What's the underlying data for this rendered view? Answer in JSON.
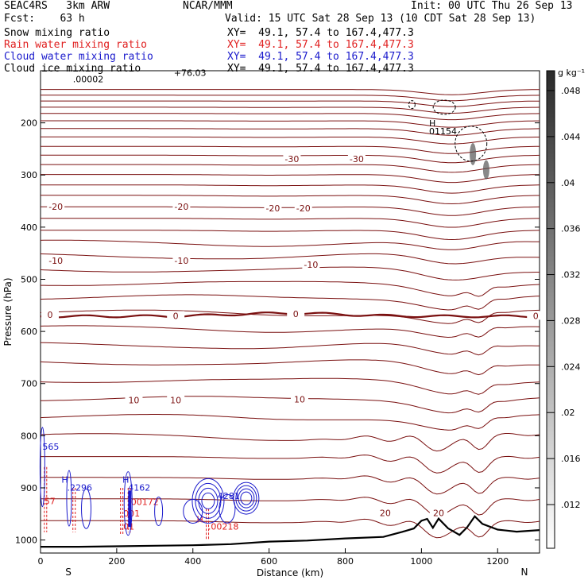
{
  "header": {
    "model": "SEAC4RS   3km ARW",
    "org": "NCAR/MMM",
    "init": "Init: 00 UTC Thu 26 Sep 13",
    "fcst": "Fcst:    63 h",
    "valid": "Valid: 15 UTC Sat 28 Sep 13 (10 CDT Sat 28 Sep 13)",
    "fields": [
      {
        "name": "Snow mixing ratio",
        "xy": "XY=  49.1, 57.4 to 167.4,477.3",
        "color": "#000000"
      },
      {
        "name": "Rain water mixing ratio",
        "xy": "XY=  49.1, 57.4 to 167.4,477.3",
        "color": "#e02020"
      },
      {
        "name": "Cloud water mixing ratio",
        "xy": "XY=  49.1, 57.4 to 167.4,477.3",
        "color": "#1a1acc"
      },
      {
        "name": "Cloud ice mixing ratio",
        "xy": "XY=  49.1, 57.4 to 167.4,477.3",
        "color": "#000000"
      }
    ]
  },
  "chart_data": {
    "type": "contour-cross-section",
    "xlabel": "Distance (km)",
    "ylabel": "Pressure (hPa)",
    "xlim": [
      0,
      1310
    ],
    "ylim": [
      1025,
      100
    ],
    "y_scale": "linear",
    "xticks": [
      0,
      200,
      400,
      600,
      800,
      1000,
      1200
    ],
    "yticks": [
      200,
      300,
      400,
      500,
      600,
      700,
      800,
      900,
      1000
    ],
    "ytick_labels": [
      "200",
      "300",
      "400",
      "500",
      "600",
      "700",
      "800",
      "900",
      "1000"
    ],
    "xtick_labels": [
      "0",
      "200",
      "400",
      "600",
      "800",
      "1000",
      "1200"
    ],
    "direction_labels": {
      "left": "S",
      "right": "N"
    },
    "colors": {
      "isotherm": "#7a1010",
      "terrain": "#000000",
      "rain": "#e02020",
      "cloud_water": "#1a1acc"
    },
    "isotherm_levels": [
      136,
      147,
      158,
      170,
      182,
      196,
      211,
      227,
      245,
      262,
      280,
      299,
      319,
      339,
      361,
      383,
      406,
      430,
      455,
      481,
      507,
      534,
      564,
      594,
      626,
      659,
      693,
      728,
      764,
      801,
      840,
      880,
      921,
      963
    ],
    "zero_isotherm_p": 571,
    "isotherm_labels": [
      {
        "text": "-30",
        "x": 660,
        "p": 272
      },
      {
        "text": "-30",
        "x": 830,
        "p": 272
      },
      {
        "text": "-20",
        "x": 40,
        "p": 364
      },
      {
        "text": "-20",
        "x": 370,
        "p": 364
      },
      {
        "text": "-20",
        "x": 610,
        "p": 367
      },
      {
        "text": "-20",
        "x": 690,
        "p": 367
      },
      {
        "text": "-10",
        "x": 40,
        "p": 467
      },
      {
        "text": "-10",
        "x": 370,
        "p": 467
      },
      {
        "text": "-10",
        "x": 710,
        "p": 475
      },
      {
        "text": "0",
        "x": 25,
        "p": 571
      },
      {
        "text": "0",
        "x": 355,
        "p": 573
      },
      {
        "text": "0",
        "x": 670,
        "p": 569
      },
      {
        "text": "0",
        "x": 1300,
        "p": 573
      },
      {
        "text": "10",
        "x": 245,
        "p": 735
      },
      {
        "text": "10",
        "x": 355,
        "p": 735
      },
      {
        "text": "10",
        "x": 680,
        "p": 733
      },
      {
        "text": "20",
        "x": 905,
        "p": 951
      },
      {
        "text": "20",
        "x": 1045,
        "p": 951
      }
    ],
    "terrain_p": [
      [
        0,
        1013
      ],
      [
        100,
        1013
      ],
      [
        200,
        1012
      ],
      [
        300,
        1011
      ],
      [
        400,
        1010
      ],
      [
        500,
        1008
      ],
      [
        600,
        1003
      ],
      [
        700,
        1001
      ],
      [
        800,
        997
      ],
      [
        900,
        994
      ],
      [
        950,
        986
      ],
      [
        980,
        975
      ],
      [
        1000,
        966
      ],
      [
        1015,
        958
      ],
      [
        1030,
        975
      ],
      [
        1045,
        962
      ],
      [
        1070,
        975
      ],
      [
        1100,
        990
      ],
      [
        1120,
        975
      ],
      [
        1140,
        956
      ],
      [
        1160,
        967
      ],
      [
        1200,
        980
      ],
      [
        1250,
        984
      ],
      [
        1310,
        981
      ]
    ],
    "snow_max_label": "H",
    "snow_max_value": "01154",
    "snow_min_label": ".00002",
    "rain_labels": [
      {
        "text": "57",
        "x": 10,
        "p": 931
      },
      {
        "text": ".00172",
        "x": 230,
        "p": 933
      },
      {
        "text": ".001",
        "x": 210,
        "p": 955
      },
      {
        "text": ".01",
        "x": 210,
        "p": 980
      },
      {
        "text": "H",
        "x": 410,
        "p": 966
      },
      {
        "text": ".00218",
        "x": 440,
        "p": 980
      }
    ],
    "cloud_labels": [
      {
        "text": "565",
        "x": 5,
        "p": 827
      },
      {
        "text": "H",
        "x": 55,
        "p": 890
      },
      {
        "text": ".2296",
        "x": 70,
        "p": 905
      },
      {
        "text": "H",
        "x": 215,
        "p": 890
      },
      {
        "text": "4162",
        "x": 230,
        "p": 905
      },
      {
        "text": "4281",
        "x": 465,
        "p": 921
      }
    ],
    "top_labels": [
      "+76.03"
    ],
    "colorbar": {
      "unit": "g kg⁻¹",
      "ticks": [
        ".012",
        ".016",
        ".02",
        ".024",
        ".028",
        ".032",
        ".036",
        ".04",
        ".044",
        ".048"
      ]
    }
  }
}
